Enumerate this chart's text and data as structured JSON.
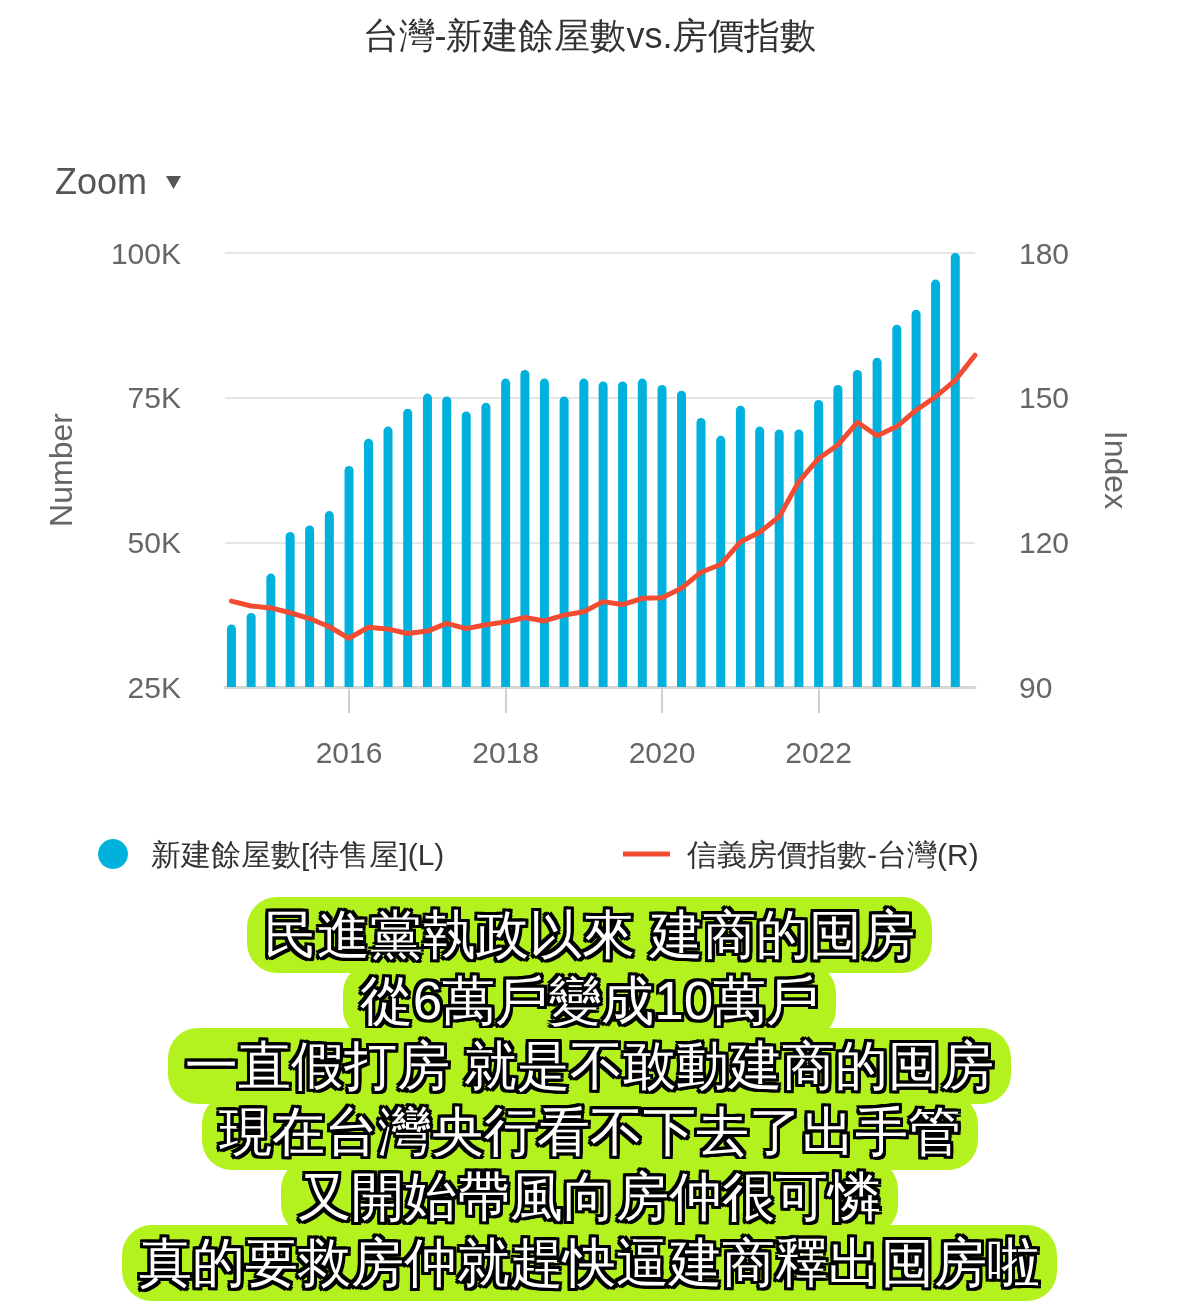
{
  "chart_data": {
    "type": "bar",
    "title": "台灣-新建餘屋數vs.房價指數",
    "ylabel": "Number",
    "y2label": "Index",
    "x": [
      "2014-07",
      "2014-10",
      "2015-01",
      "2015-04",
      "2015-07",
      "2015-10",
      "2016-01",
      "2016-04",
      "2016-07",
      "2016-10",
      "2017-01",
      "2017-04",
      "2017-07",
      "2017-10",
      "2018-01",
      "2018-04",
      "2018-07",
      "2018-10",
      "2019-01",
      "2019-04",
      "2019-07",
      "2019-10",
      "2020-01",
      "2020-04",
      "2020-07",
      "2020-10",
      "2021-01",
      "2021-04",
      "2021-07",
      "2021-10",
      "2022-01",
      "2022-04",
      "2022-07",
      "2022-10",
      "2023-01",
      "2023-04",
      "2023-07",
      "2023-10"
    ],
    "series": [
      {
        "name": "新建餘屋數[待售屋](L)",
        "color": "#00b1de",
        "values": [
          35800,
          37800,
          44600,
          51800,
          52900,
          55400,
          63200,
          67900,
          70000,
          73100,
          75700,
          75200,
          72600,
          74100,
          78300,
          79800,
          78300,
          75200,
          78300,
          77800,
          77800,
          78300,
          77200,
          76200,
          71500,
          68400,
          73600,
          70000,
          69500,
          69500,
          74600,
          77200,
          79800,
          81900,
          87600,
          90200,
          95400,
          100000
        ]
      },
      {
        "name": "信義房價指數-台灣(R)",
        "type": "line",
        "color": "#f44c32",
        "axis": "y2",
        "x": [
          "2014-07",
          "2014-10",
          "2015-01",
          "2015-04",
          "2015-07",
          "2015-10",
          "2016-01",
          "2016-04",
          "2016-07",
          "2016-10",
          "2017-01",
          "2017-04",
          "2017-07",
          "2017-10",
          "2018-01",
          "2018-04",
          "2018-07",
          "2018-10",
          "2019-01",
          "2019-04",
          "2019-07",
          "2019-10",
          "2020-01",
          "2020-04",
          "2020-07",
          "2020-10",
          "2021-01",
          "2021-04",
          "2021-07",
          "2021-10",
          "2022-01",
          "2022-04",
          "2022-07",
          "2022-10",
          "2023-01",
          "2023-04",
          "2023-07",
          "2023-10",
          "2024-01"
        ],
        "values": [
          107.8,
          106.8,
          106.4,
          105.4,
          104.2,
          102.5,
          100.1,
          102.4,
          102.0,
          101.1,
          101.6,
          103.2,
          102.1,
          102.9,
          103.5,
          104.4,
          103.7,
          104.9,
          105.6,
          107.7,
          107.1,
          108.4,
          108.5,
          110.5,
          113.8,
          115.4,
          120.1,
          122.1,
          125.3,
          132.6,
          137.4,
          140.2,
          144.9,
          142.1,
          144.0,
          147.4,
          150.2,
          153.6,
          158.8
        ]
      }
    ],
    "xlim": [
      "2014-06",
      "2024-01"
    ],
    "xticks": [
      "2016",
      "2018",
      "2020",
      "2022"
    ],
    "ylim": [
      25000,
      100000
    ],
    "yticks": [
      {
        "value": 25000,
        "label": "25K"
      },
      {
        "value": 50000,
        "label": "50K"
      },
      {
        "value": 75000,
        "label": "75K"
      },
      {
        "value": 100000,
        "label": "100K"
      }
    ],
    "y2lim": [
      90,
      180
    ],
    "y2ticks": [
      90,
      120,
      150,
      180
    ],
    "grid": "y",
    "legend": "bottom",
    "marker": "none",
    "annotations": [
      "Zoom",
      "民進黨執政以來 建商的囤房",
      "從6萬戶變成10萬戶",
      "一直假打房 就是不敢動建商的囤房",
      "現在台灣央行看不下去了出手管",
      "又開始帶風向房仲很可憐",
      "真的要救房仲就趕快逼建商釋出囤房啦"
    ]
  }
}
